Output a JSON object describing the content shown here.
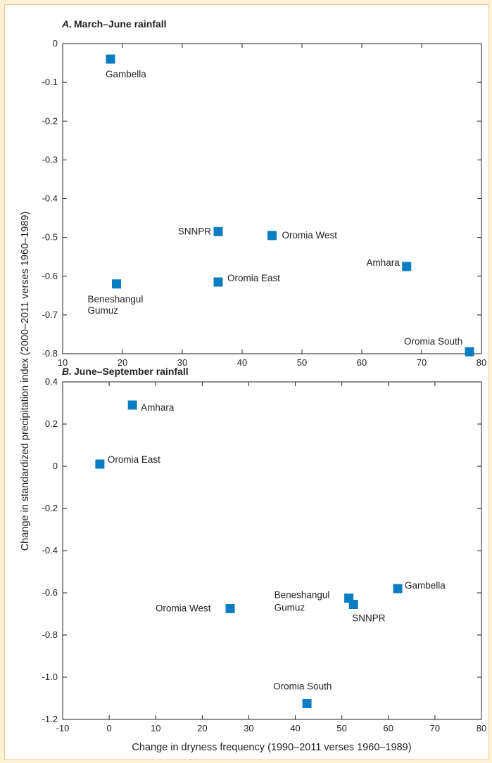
{
  "colors": {
    "marker": "#0b7dc3",
    "axis": "#231f20",
    "background": "#fdf1d6"
  },
  "ylabel": "Change in standardized precipitation index (2000–2011 verses 1960–1989)",
  "xlabel": "Change in dryness frequency (1990–2011 verses 1960–1989)",
  "chart_data": [
    {
      "type": "scatter",
      "title_letter": "A.",
      "title_text": "March–June rainfall",
      "xlim": [
        10,
        80
      ],
      "ylim": [
        -0.8,
        0
      ],
      "xticks": [
        "10",
        "20",
        "30",
        "40",
        "50",
        "60",
        "70",
        "80"
      ],
      "yticks": [
        "0",
        "-0.1",
        "-0.2",
        "-0.3",
        "-0.4",
        "-0.5",
        "-0.6",
        "-0.7",
        "-0.8"
      ],
      "points": [
        {
          "label": [
            "Gambella"
          ],
          "x": 18,
          "y": -0.04
        },
        {
          "label": [
            "SNNPR"
          ],
          "x": 36,
          "y": -0.485
        },
        {
          "label": [
            "Oromia West"
          ],
          "x": 45,
          "y": -0.495
        },
        {
          "label": [
            "Amhara"
          ],
          "x": 67.5,
          "y": -0.575
        },
        {
          "label": [
            "Beneshangul",
            "Gumuz"
          ],
          "x": 19,
          "y": -0.62
        },
        {
          "label": [
            "Oromia East"
          ],
          "x": 36,
          "y": -0.615
        },
        {
          "label": [
            "Oromia South"
          ],
          "x": 78,
          "y": -0.795
        }
      ]
    },
    {
      "type": "scatter",
      "title_letter": "B.",
      "title_text": "June–September rainfall",
      "xlim": [
        -10,
        80
      ],
      "ylim": [
        -1.2,
        0.4
      ],
      "xticks": [
        "-10",
        "0",
        "10",
        "20",
        "30",
        "40",
        "50",
        "60",
        "70",
        "80"
      ],
      "yticks": [
        "0.4",
        "0.2",
        "0",
        "-0.2",
        "-0.4",
        "-0.6",
        "-0.8",
        "-1.0",
        "-1.2"
      ],
      "points": [
        {
          "label": [
            "Amhara"
          ],
          "x": 5,
          "y": 0.29
        },
        {
          "label": [
            "Oromia East"
          ],
          "x": -2,
          "y": 0.01
        },
        {
          "label": [
            "Gambella"
          ],
          "x": 62,
          "y": -0.58
        },
        {
          "label": [
            "Beneshangul",
            "Gumuz"
          ],
          "x": 51.5,
          "y": -0.625
        },
        {
          "label": [
            "SNNPR"
          ],
          "x": 52.5,
          "y": -0.655
        },
        {
          "label": [
            "Oromia West"
          ],
          "x": 26,
          "y": -0.675
        },
        {
          "label": [
            "Oromia South"
          ],
          "x": 42.5,
          "y": -1.125
        }
      ]
    }
  ]
}
